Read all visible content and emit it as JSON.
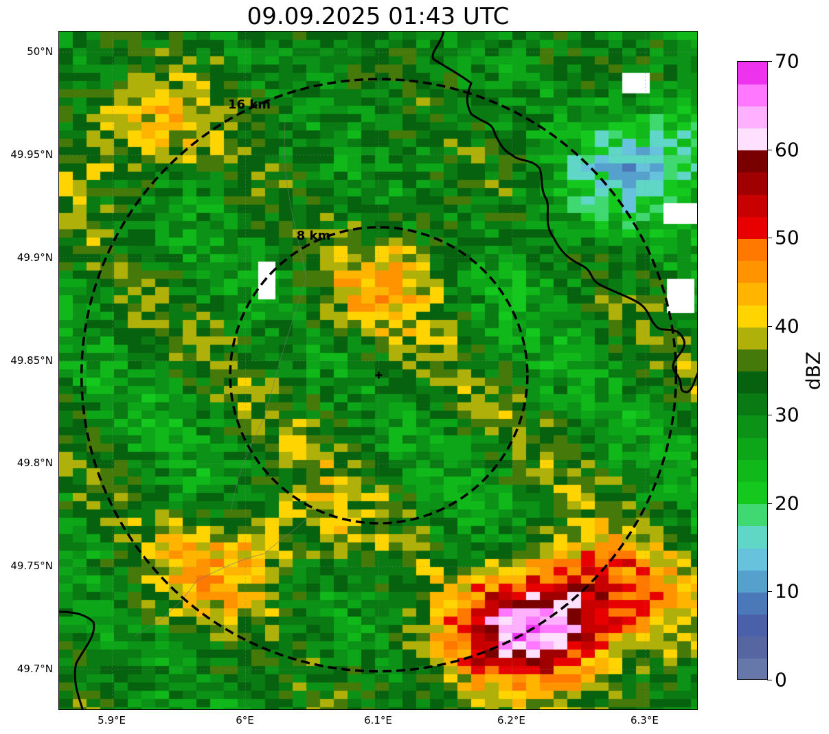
{
  "title": "09.09.2025 01:43 UTC",
  "map": {
    "lon_range": [
      5.86,
      6.34
    ],
    "lat_range": [
      49.68,
      50.01
    ],
    "lat_ticks": [
      {
        "value": 50.0,
        "label": "50°N"
      },
      {
        "value": 49.95,
        "label": "49.95°N"
      },
      {
        "value": 49.9,
        "label": "49.9°N"
      },
      {
        "value": 49.85,
        "label": "49.85°N"
      },
      {
        "value": 49.8,
        "label": "49.8°N"
      },
      {
        "value": 49.75,
        "label": "49.75°N"
      },
      {
        "value": 49.7,
        "label": "49.7°N"
      }
    ],
    "lon_ticks": [
      {
        "value": 5.9,
        "label": "5.9°E"
      },
      {
        "value": 6.0,
        "label": "6°E"
      },
      {
        "value": 6.1,
        "label": "6.1°E"
      },
      {
        "value": 6.2,
        "label": "6.2°E"
      },
      {
        "value": 6.3,
        "label": "6.3°E"
      }
    ],
    "gridlines": true,
    "radar_site": {
      "lon": 6.1,
      "lat": 49.843
    },
    "range_rings": [
      {
        "radius_km": 8,
        "label": "8 km"
      },
      {
        "radius_km": 16,
        "label": "16 km"
      }
    ]
  },
  "colorbar": {
    "unit": "dBZ",
    "min": 0,
    "max": 70,
    "tick_labels": [
      "0",
      "10",
      "20",
      "30",
      "40",
      "50",
      "60",
      "70"
    ],
    "colors": [
      "#6677aa",
      "#5566a2",
      "#4a60a8",
      "#4a78b8",
      "#55a0cc",
      "#66c2dd",
      "#5fd6c6",
      "#40d870",
      "#14c81e",
      "#10b81a",
      "#0da618",
      "#0c9216",
      "#0a7a12",
      "#06620e",
      "#457a0a",
      "#b0b00a",
      "#ffd400",
      "#ffb400",
      "#ff9400",
      "#ff7800",
      "#e80000",
      "#c80000",
      "#a00000",
      "#7a0000",
      "#ffe0ff",
      "#ffb0ff",
      "#ff78ff",
      "#ee33ee"
    ]
  },
  "chart_data": {
    "type": "heatmap",
    "title": "09.09.2025 01:43 UTC",
    "field": "radar reflectivity",
    "colorbar_label": "dBZ",
    "colorbar_range": [
      0,
      70
    ],
    "x_range_lon": [
      5.86,
      6.34
    ],
    "y_range_lat": [
      49.68,
      50.01
    ],
    "features": [
      {
        "lon": 6.21,
        "lat": 49.73,
        "dbz": 52
      },
      {
        "lon": 6.245,
        "lat": 49.72,
        "dbz": 51
      },
      {
        "lon": 6.0,
        "lat": 49.755,
        "dbz": 44
      },
      {
        "lon": 5.92,
        "lat": 49.96,
        "dbz": 41
      },
      {
        "lon": 6.12,
        "lat": 49.89,
        "dbz": 42
      },
      {
        "lon": 6.1,
        "lat": 49.83,
        "dbz": 33
      },
      {
        "lon": 6.2,
        "lat": 49.9,
        "dbz": 26
      },
      {
        "lon": 6.31,
        "lat": 49.95,
        "dbz": 15
      },
      {
        "lon": 6.3,
        "lat": 49.7,
        "dbz": 34
      }
    ]
  }
}
